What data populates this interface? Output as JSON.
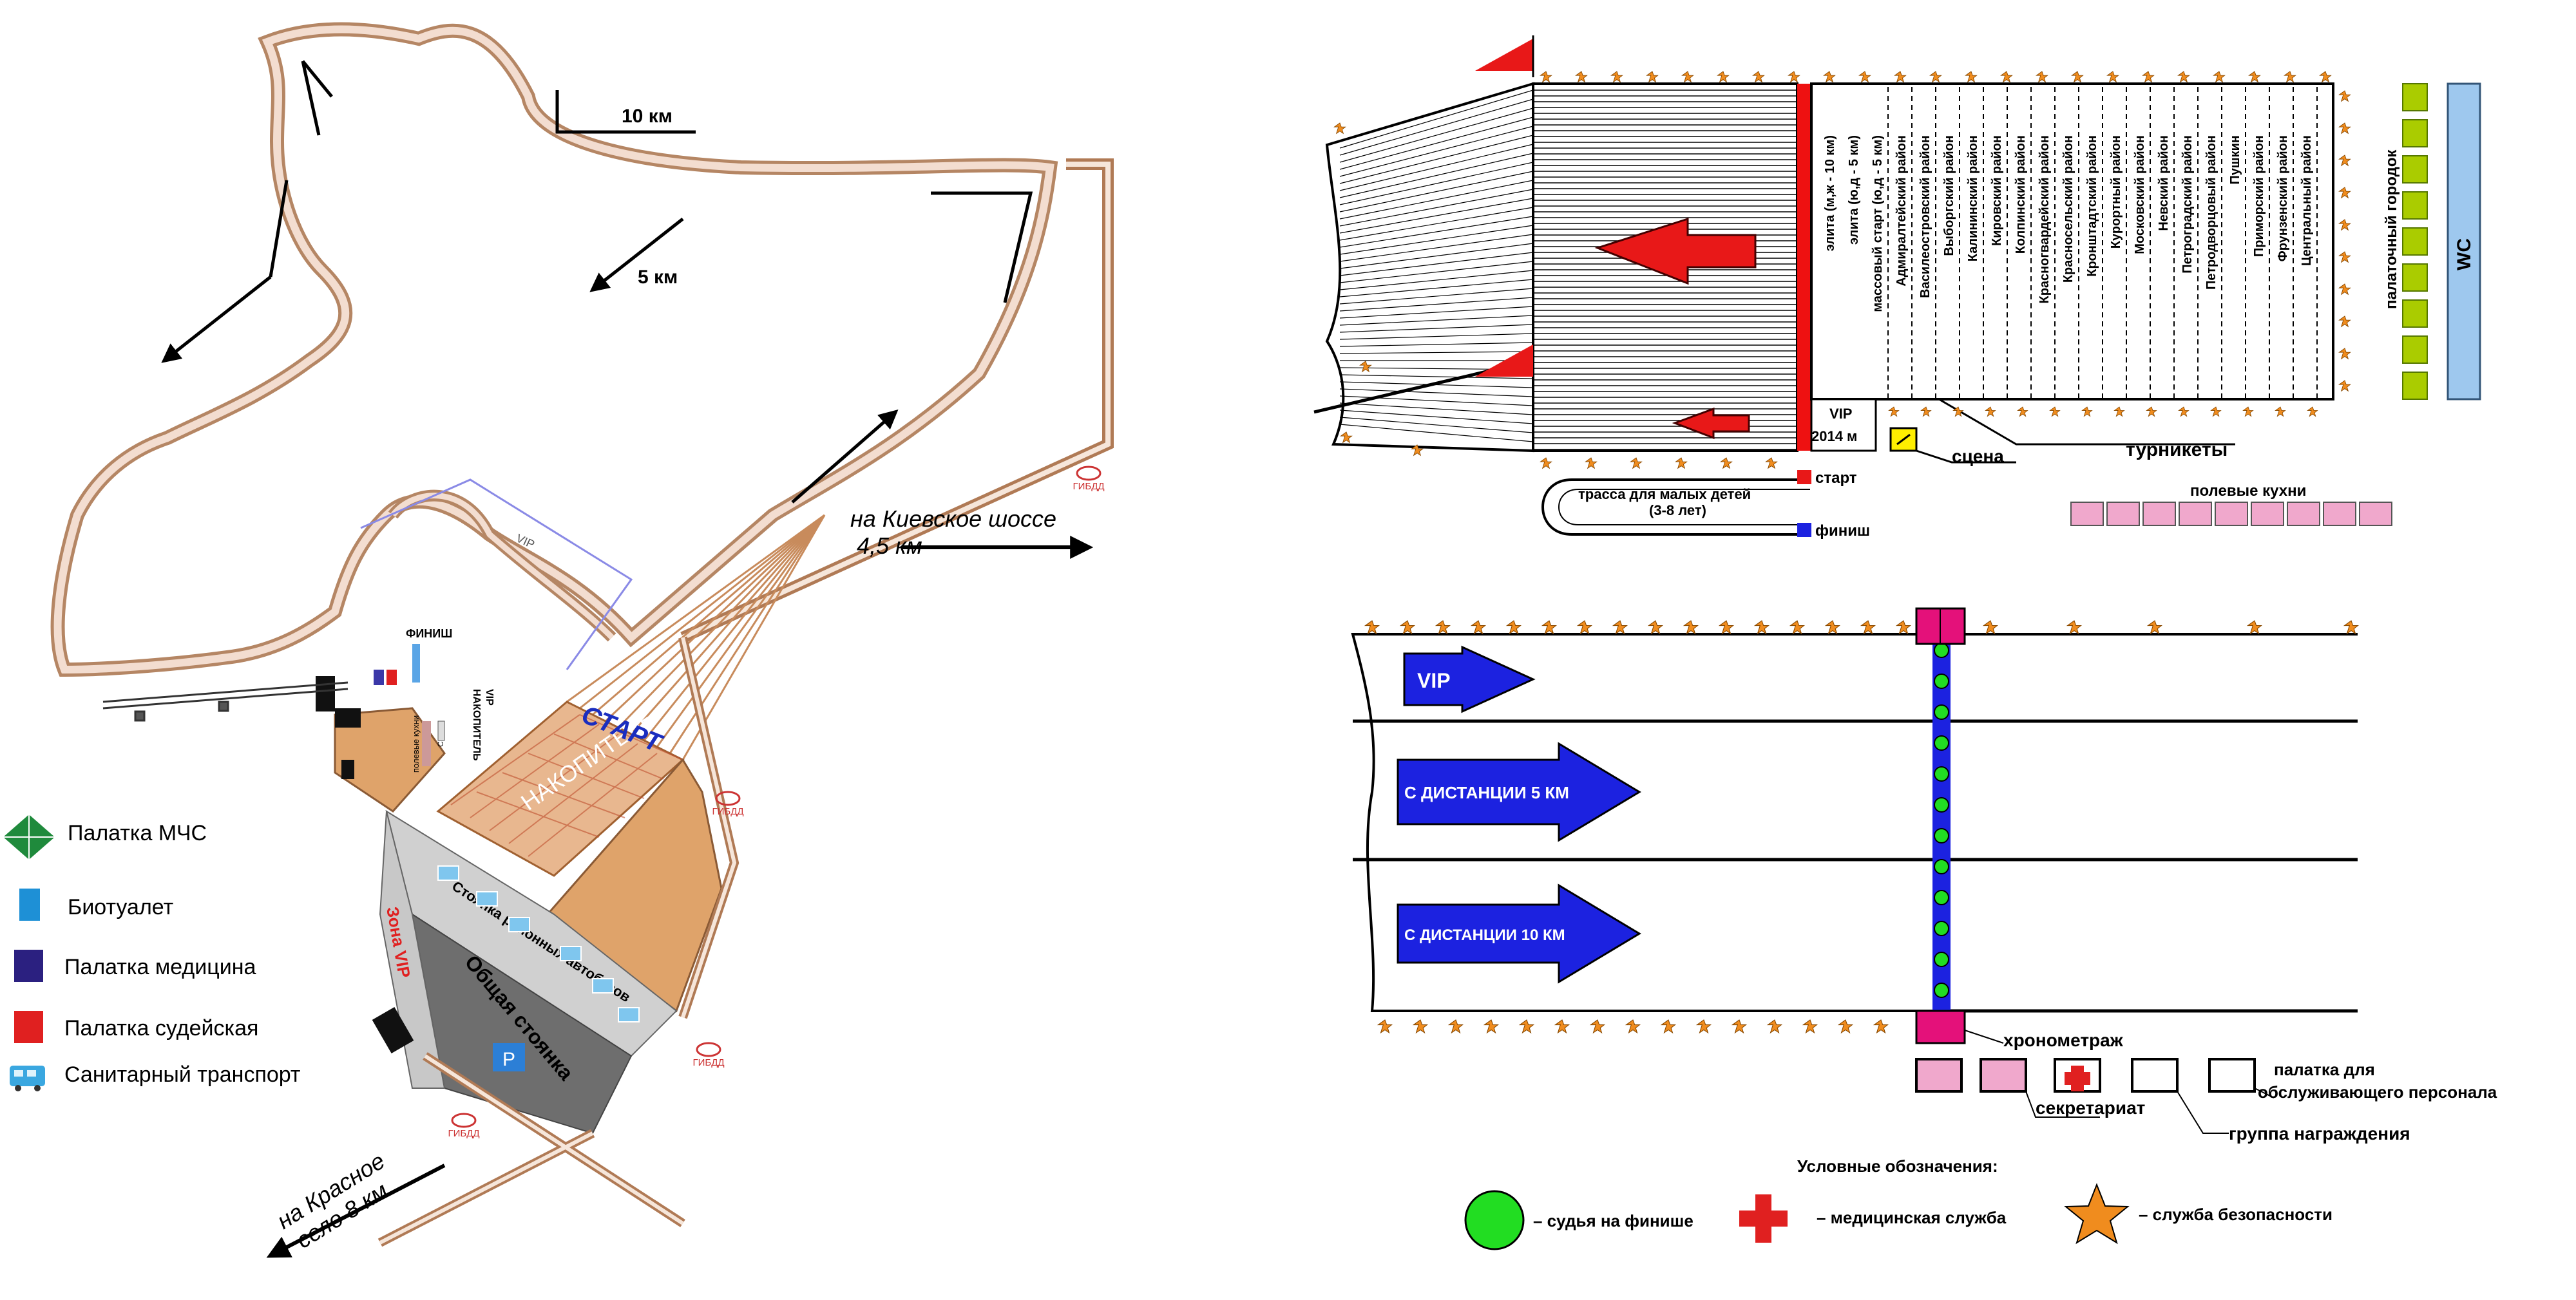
{
  "route": {
    "km10": "10 км",
    "km5": "5 км",
    "to_kiev": "на Киевское шоссе",
    "to_kiev_dist": "4,5 км",
    "to_krasnoe": "на Красное",
    "to_krasnoe_dist": "село 8 км",
    "finish": "ФИНИШ",
    "vip": "VIP",
    "accumulator_top": "НАКОПИТЕЛЬ",
    "start": "СТАРТ",
    "accumulator": "НАКОПИТЕЛЬ",
    "vip_zone": "Зона VIP",
    "district_buses": "Стоянка районных автобусов",
    "common_parking": "Общая стоянка",
    "parking_sign": "P",
    "field_kitchens": "полевые кухни",
    "stage": "Сцена",
    "gibdd": "ГИБДД"
  },
  "legend_left": [
    {
      "label": "Палатка МЧС",
      "icon": "green-diamond-icon",
      "color": "#1f8a3c"
    },
    {
      "label": "Биотуалет",
      "icon": "blue-square-icon",
      "color": "#1e90d6"
    },
    {
      "label": "Палатка медицина",
      "icon": "navy-square-icon",
      "color": "#2b2080"
    },
    {
      "label": "Палатка судейская",
      "icon": "red-square-icon",
      "color": "#e02020"
    },
    {
      "label": "Санитарный транспорт",
      "icon": "ambulance-icon",
      "color": "#3aa7e0"
    }
  ],
  "start_zone": {
    "corrals": [
      "элита (м,ж - 10 км)",
      "элита (ю,д - 5 км)",
      "массовый старт (ю,д - 5 км)",
      "Адмиралтейский район",
      "Василеостровский район",
      "Выборгский район",
      "Калининский район",
      "Кировский район",
      "Колпинский район",
      "Красногвардейский район",
      "Красносельский район",
      "Кронштадтский район",
      "Курортный район",
      "Московский район",
      "Невский район",
      "Петроградский район",
      "Петродворцовый район",
      "Пушкин",
      "Приморский район",
      "Фрунзенский район",
      "Центральный район"
    ],
    "tent_town": "палаточный городок",
    "wc": "WC",
    "vip": "VIP",
    "year": "2014 м",
    "stage": "сцена",
    "turnstiles": "турникеты",
    "field_kitchens": "полевые кухни",
    "kids_track": "трасса для малых детей",
    "kids_age": "(3-8 лет)",
    "start": "старт",
    "finish": "финиш"
  },
  "finish_zone": {
    "arrow_vip": "VIP",
    "arrow_5": "С ДИСТАНЦИИ 5 КМ",
    "arrow_10": "С ДИСТАНЦИИ 10 КМ",
    "timing": "хронометраж",
    "secretariat": "секретариат",
    "awards": "группа награждения",
    "staff_tent_1": "палатка для",
    "staff_tent_2": "обслуживающего персонала"
  },
  "legend_bottom": {
    "title": "Условные обозначения:",
    "items": [
      {
        "label": "– судья на финише",
        "icon": "green-circle-icon",
        "color": "#22dd22"
      },
      {
        "label": "– медицинская служба",
        "icon": "red-cross-icon",
        "color": "#e02020"
      },
      {
        "label": "– служба безопасности",
        "icon": "orange-star-icon",
        "color": "#f08c1e"
      }
    ]
  },
  "colors": {
    "road": "#d9a17a",
    "accumulator": "#dfa36a",
    "parking": "#6e6e6e",
    "start_red": "#ee1111",
    "finish_blue": "#1c22e0",
    "kitchen_pink": "#f0a8cc",
    "tent_green": "#aacc00",
    "wc_blue": "#9ec8ee"
  }
}
